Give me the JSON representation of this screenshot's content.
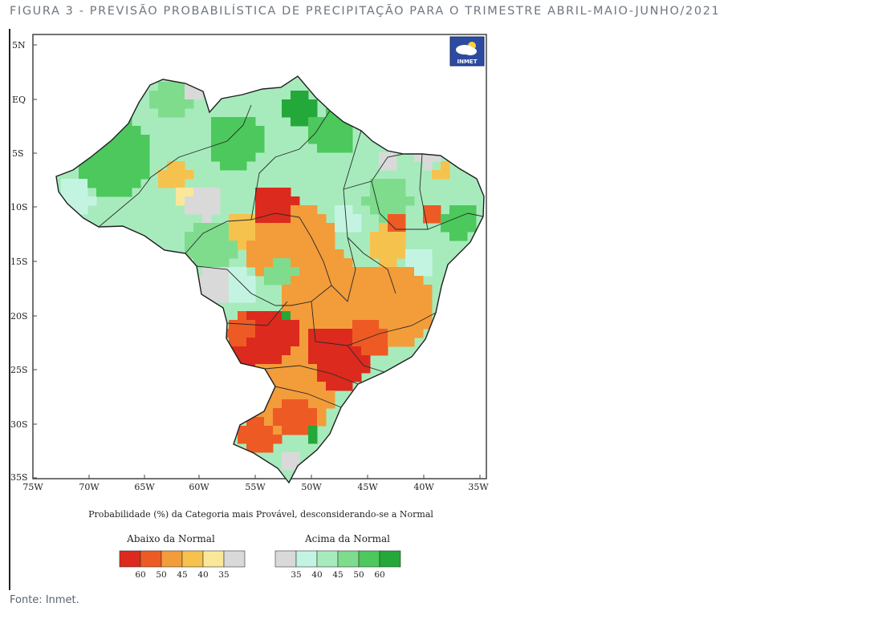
{
  "figure": {
    "title": "FIGURA 3 - PREVISÃO PROBABILÍSTICA DE PRECIPITAÇÃO PARA O TRIMESTRE ABRIL-MAIO-JUNHO/2021",
    "source": "Fonte: Inmet."
  },
  "map": {
    "logo_text": "INMET",
    "lat_labels": [
      "5N",
      "EQ",
      "5S",
      "10S",
      "15S",
      "20S",
      "25S",
      "30S",
      "35S"
    ],
    "lon_labels": [
      "75W",
      "70W",
      "65W",
      "60W",
      "55W",
      "50W",
      "45W",
      "40W",
      "35W"
    ],
    "caption": "Probabilidade (%) da Categoria mais Provável, desconsiderando-se a Normal"
  },
  "legend": {
    "below_title": "Abaixo da Normal",
    "above_title": "Acima da Normal",
    "below_colors": [
      "#dc2a1e",
      "#ee5a24",
      "#f39c3a",
      "#f6c24e",
      "#fbe79a",
      "#d9d9d9"
    ],
    "below_ticks": [
      "60",
      "50",
      "45",
      "40",
      "35"
    ],
    "above_colors": [
      "#d9d9d9",
      "#c3f4e2",
      "#a7ebbd",
      "#7fdc8d",
      "#4cc85c",
      "#25a83a"
    ],
    "above_ticks": [
      "35",
      "40",
      "45",
      "50",
      "60"
    ]
  },
  "colors": {
    "frame": "#222222",
    "title_gray": "#6e7680"
  }
}
